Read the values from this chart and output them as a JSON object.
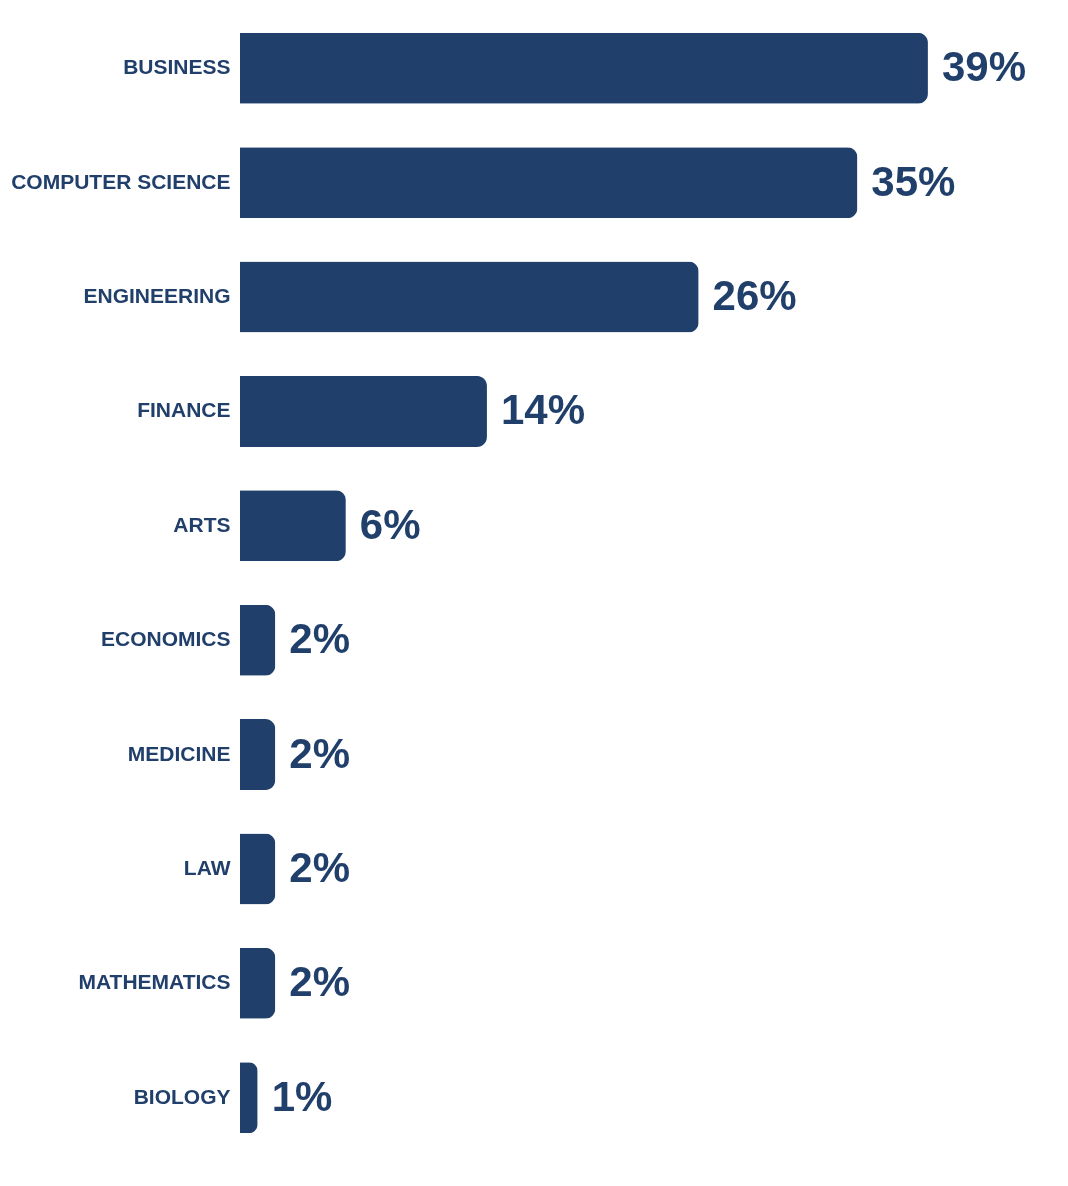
{
  "chart_data": {
    "type": "bar",
    "orientation": "horizontal",
    "categories": [
      "BUSINESS",
      "COMPUTER SCIENCE",
      "ENGINEERING",
      "FINANCE",
      "ARTS",
      "ECONOMICS",
      "MEDICINE",
      "LAW",
      "MATHEMATICS",
      "BIOLOGY"
    ],
    "values": [
      39,
      35,
      26,
      14,
      6,
      2,
      2,
      2,
      2,
      1
    ],
    "value_labels": [
      "39%",
      "35%",
      "26%",
      "14%",
      "6%",
      "2%",
      "2%",
      "2%",
      "2%",
      "1%"
    ],
    "color": "#213f6b"
  }
}
